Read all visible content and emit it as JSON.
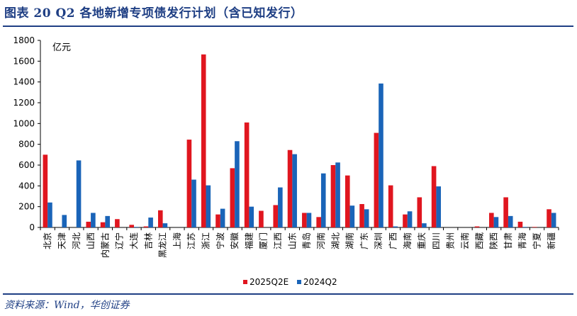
{
  "figure": {
    "title": "图表 20   Q2 各地新增专项债发行计划（含已知发行）",
    "source": "资料来源：Wind，华创证券"
  },
  "chart_data": {
    "type": "bar",
    "ylabel": "亿元",
    "ylim": [
      0,
      1800
    ],
    "yticks": [
      0,
      200,
      400,
      600,
      800,
      1000,
      1200,
      1400,
      1600,
      1800
    ],
    "grid": false,
    "legend_position": "bottom-center",
    "categories": [
      "北京",
      "天津",
      "河北",
      "山西",
      "内蒙古",
      "辽宁",
      "大连",
      "吉林",
      "黑龙江",
      "上海",
      "江苏",
      "浙江",
      "宁波",
      "安徽",
      "福建",
      "厦门",
      "江西",
      "山东",
      "青岛",
      "河南",
      "湖北",
      "湖南",
      "广东",
      "深圳",
      "广西",
      "海南",
      "重庆",
      "四川",
      "贵州",
      "云南",
      "西藏",
      "陕西",
      "甘肃",
      "青海",
      "宁夏",
      "新疆"
    ],
    "series": [
      {
        "name": "2025Q2E",
        "color": "#e0161f",
        "values": [
          700,
          0,
          0,
          55,
          50,
          80,
          25,
          10,
          165,
          0,
          845,
          1665,
          125,
          570,
          1010,
          160,
          215,
          745,
          140,
          100,
          600,
          500,
          225,
          910,
          405,
          125,
          290,
          590,
          0,
          0,
          10,
          140,
          290,
          55,
          5,
          175
        ]
      },
      {
        "name": "2024Q2",
        "color": "#1a64b8",
        "values": [
          240,
          120,
          645,
          140,
          110,
          0,
          5,
          95,
          40,
          0,
          460,
          405,
          180,
          830,
          200,
          0,
          385,
          705,
          140,
          520,
          625,
          210,
          175,
          1385,
          10,
          155,
          40,
          395,
          0,
          0,
          0,
          100,
          110,
          5,
          0,
          140
        ]
      }
    ]
  }
}
